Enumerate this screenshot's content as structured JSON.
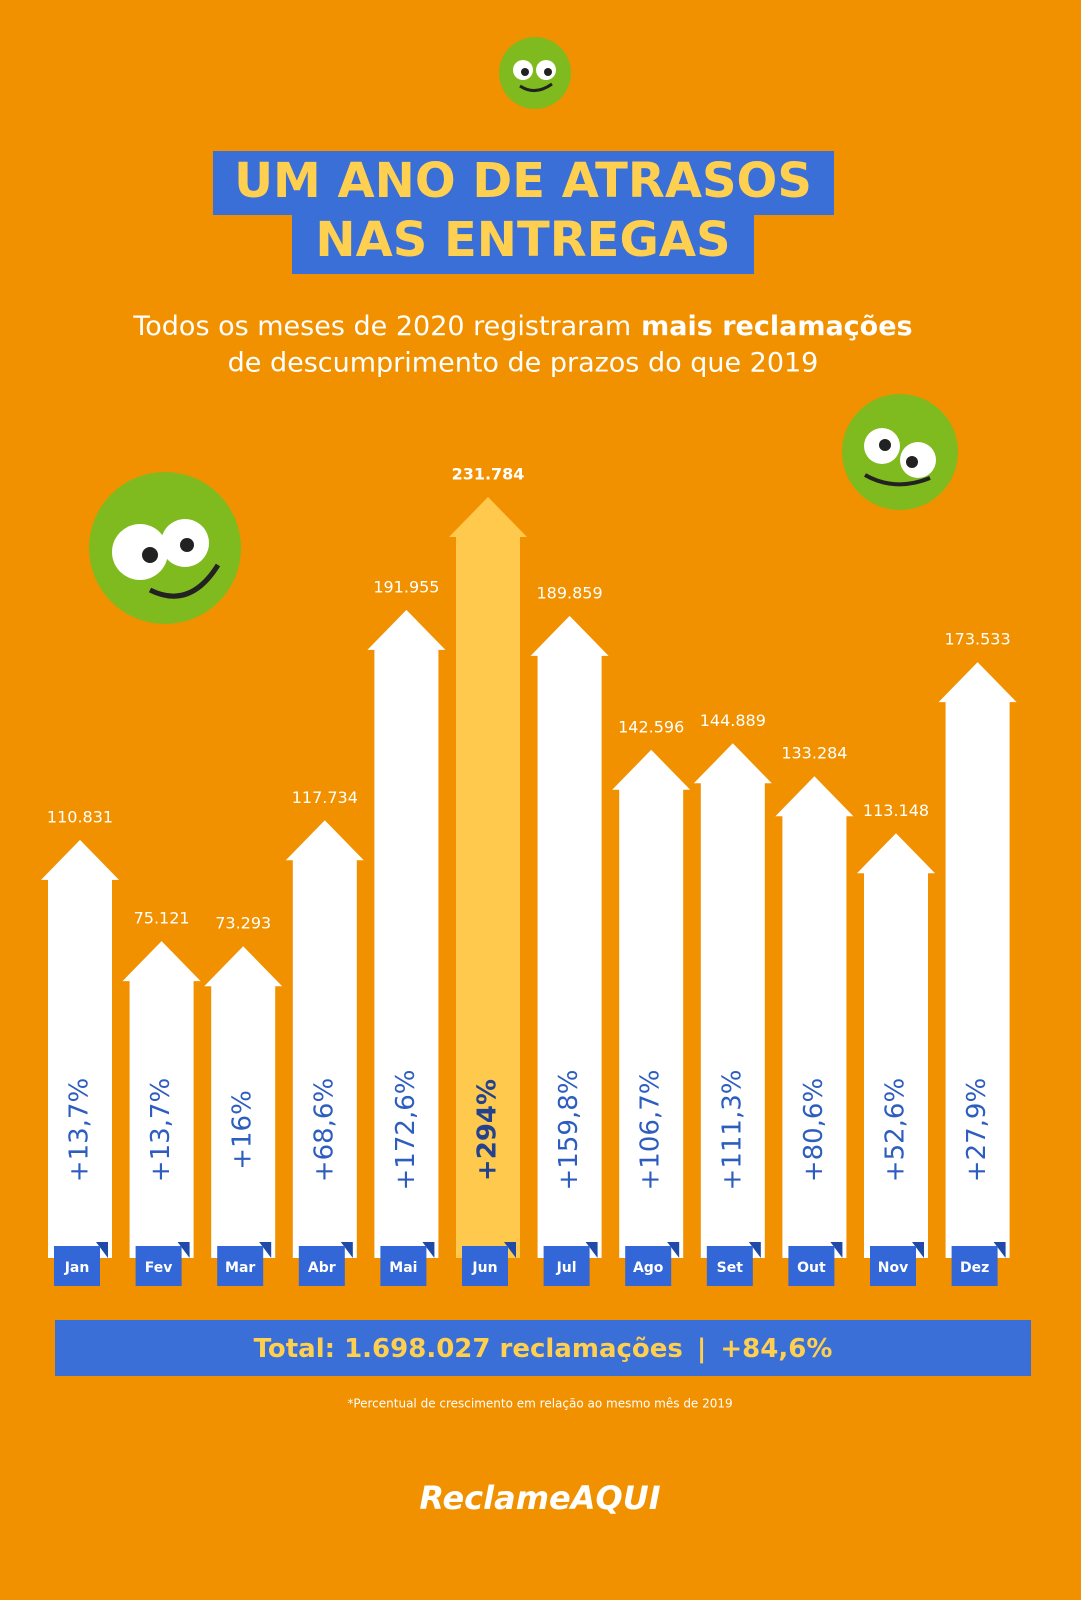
{
  "chart_data": {
    "type": "arrow-bar",
    "title": [
      "UM ANO DE ATRASOS",
      "NAS ENTREGAS"
    ],
    "subtitle": [
      "Todos os meses de 2020 registraram",
      "mais reclamações",
      "de descumprimento de prazos do que 2019"
    ],
    "categories": [
      "Jan",
      "Fev",
      "Mar",
      "Abr",
      "Mai",
      "Jun",
      "Jul",
      "Ago",
      "Set",
      "Out",
      "Nov",
      "Dez"
    ],
    "values": [
      110831,
      75121,
      73293,
      117734,
      191955,
      231784,
      189859,
      142596,
      144889,
      133284,
      113148,
      173533
    ],
    "value_labels": [
      "110.831",
      "75.121",
      "73.293",
      "117.734",
      "191.955",
      "231.784",
      "189.859",
      "142.596",
      "144.889",
      "133.284",
      "113.148",
      "173.533"
    ],
    "growth_labels": [
      "+13,7%",
      "+13,7%",
      "+16%",
      "+68,6%",
      "+172,6%",
      "+294%",
      "+159,8%",
      "+106,7%",
      "+111,3%",
      "+80,6%",
      "+52,6%",
      "+27,9%"
    ],
    "colors": [
      "#ffffff",
      "#ffffff",
      "#ffffff",
      "#ffffff",
      "#ffffff",
      "#ffc94e",
      "#ffffff",
      "#ffffff",
      "#ffffff",
      "#ffffff",
      "#ffffff",
      "#ffffff"
    ],
    "total": "Total: 1.698.027 reclamações",
    "separator": "|",
    "total_growth": "+84,6%",
    "footnote": "*Percentual de crescimento em relação ao mesmo mês de 2019",
    "brand": "ReclameAQUI"
  }
}
